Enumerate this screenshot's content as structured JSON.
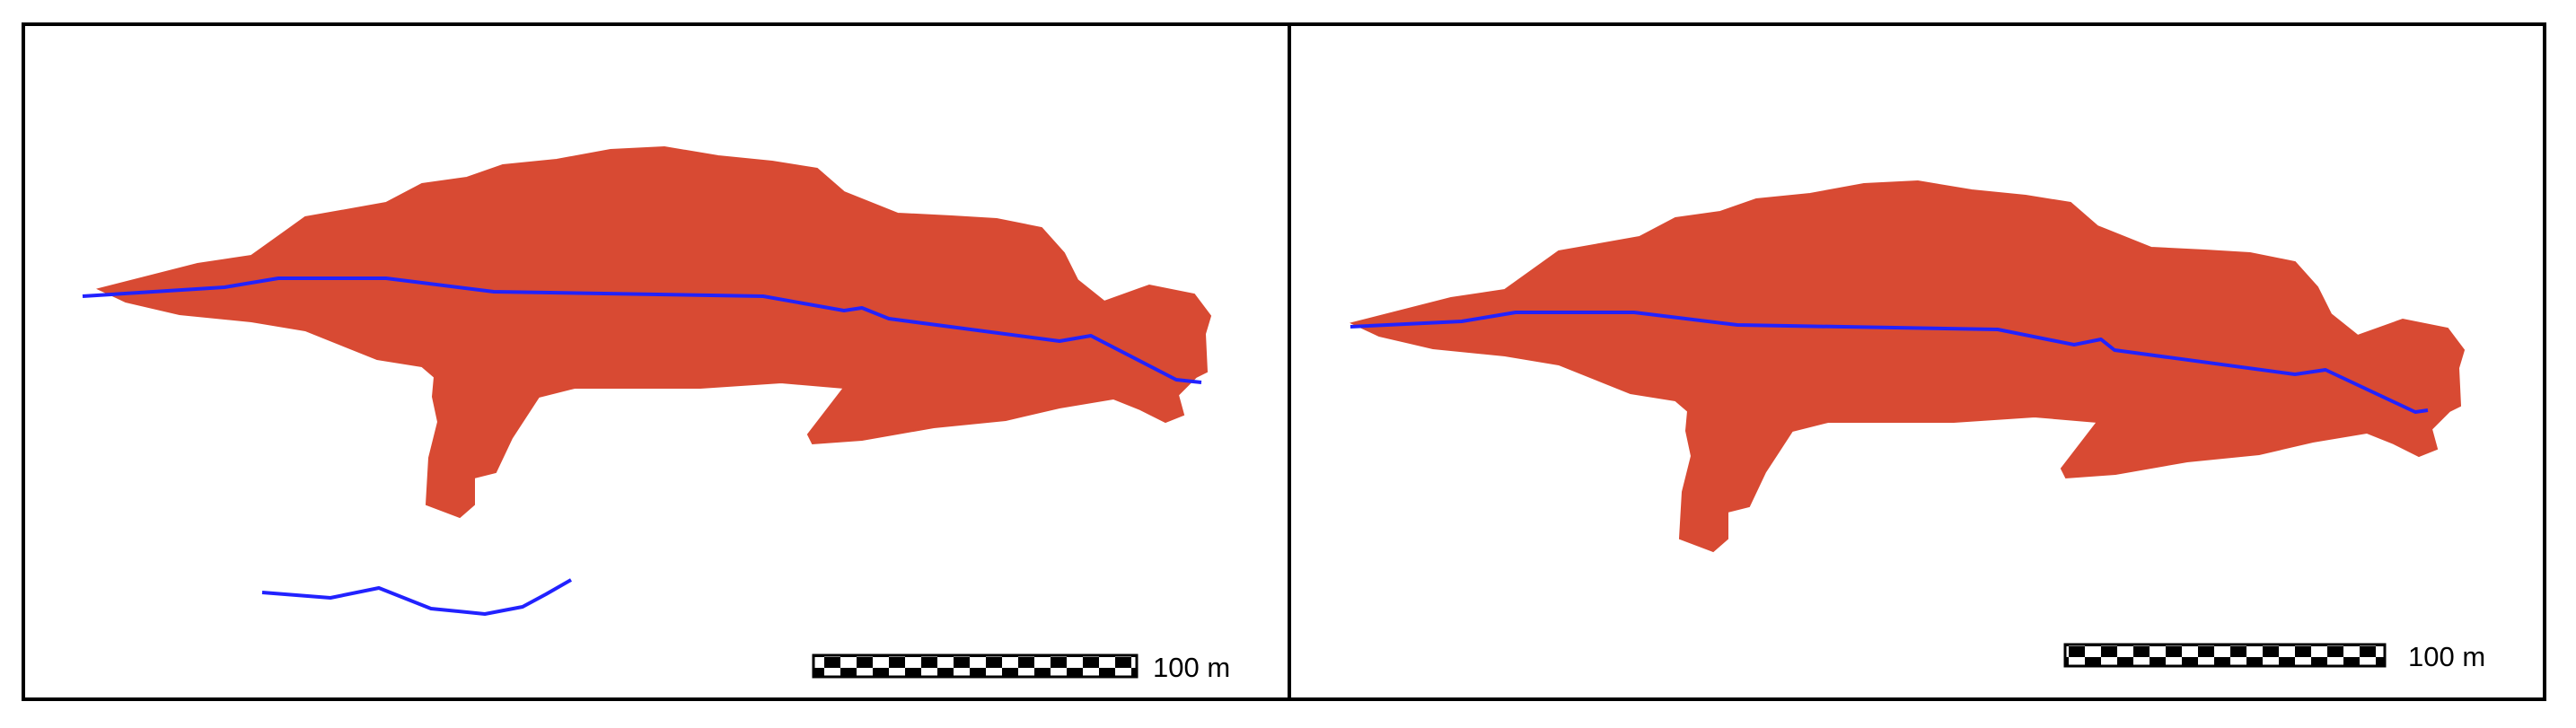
{
  "colors": {
    "background": "#ffffff",
    "frame": "#000000",
    "polygon_fill": "#d84a33",
    "line_stroke": "#2222ff",
    "scale_dark": "#000000",
    "scale_light": "#ffffff"
  },
  "panels": [
    {
      "name": "left-panel",
      "features": [
        "orange-polygon",
        "blue-stream-line",
        "blue-stream-fragment"
      ],
      "scale_bar": {
        "label": "100 m",
        "segments": 10
      }
    },
    {
      "name": "right-panel",
      "features": [
        "orange-polygon",
        "blue-stream-line"
      ],
      "scale_bar": {
        "label": "100 m",
        "segments": 10
      }
    }
  ]
}
